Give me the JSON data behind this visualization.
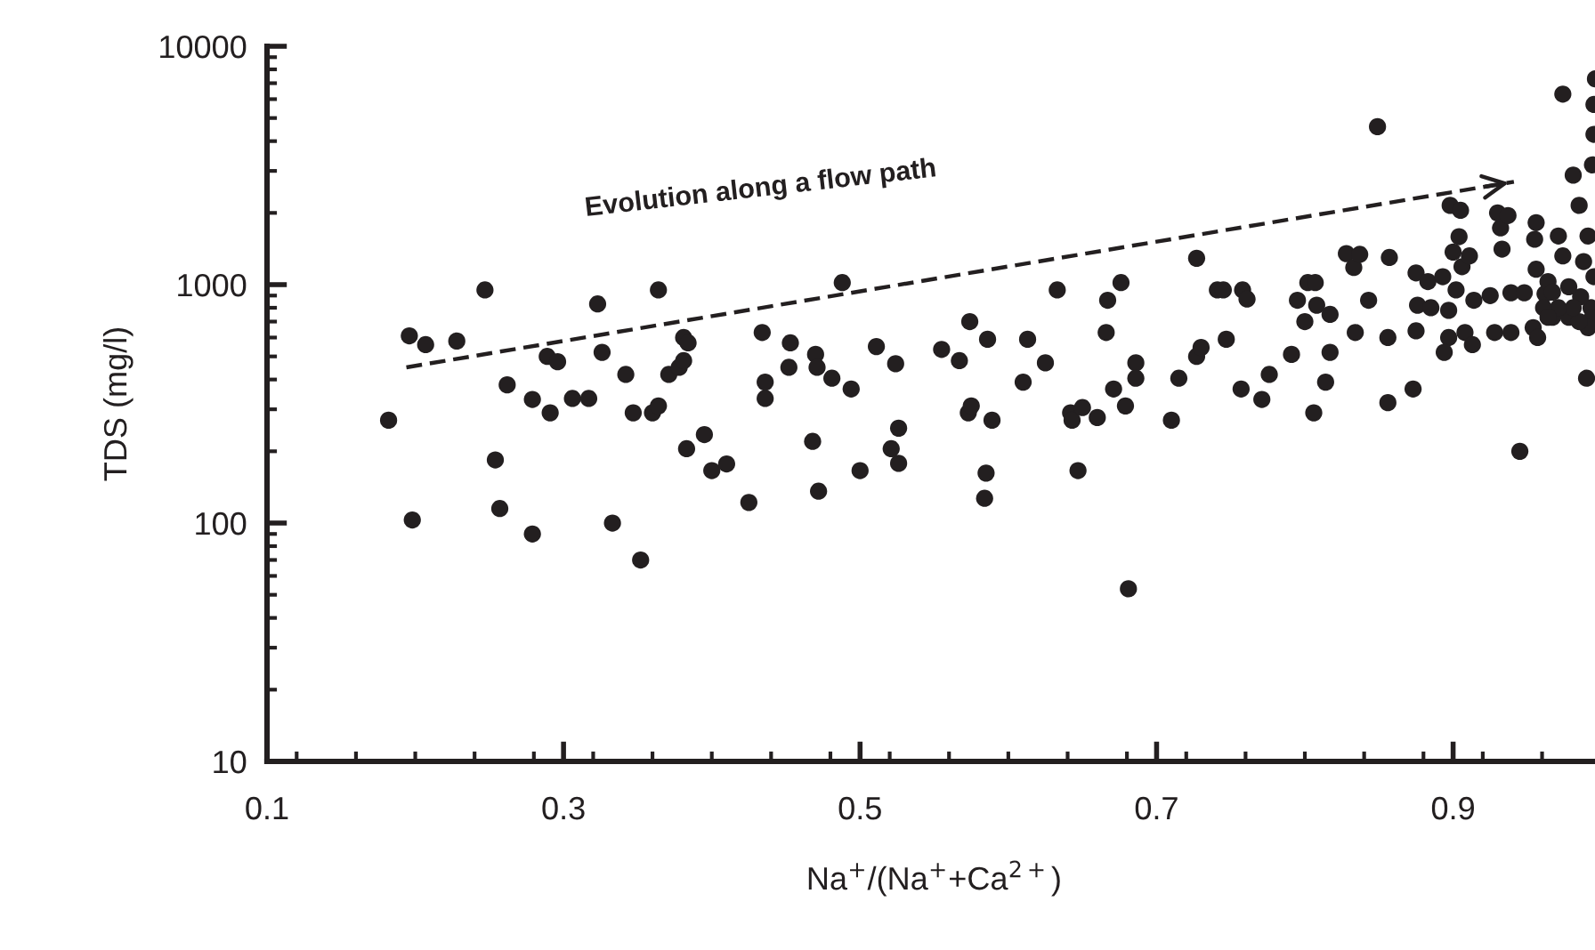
{
  "chart_data": {
    "type": "scatter",
    "xlabel": "Na$^{+}$/(Na$^{+}$+Ca$^{2+}$)",
    "ylabel": "TDS (mg/l)",
    "annotations": [
      "Evolution along a flow path"
    ],
    "log": "y",
    "xlim": [
      0.1,
      1.0
    ],
    "ylim": [
      10,
      10000
    ],
    "xticks": [
      0.1,
      0.3,
      0.5,
      0.7,
      0.9
    ],
    "yticks": [
      10,
      100,
      1000,
      10000
    ],
    "marker": "circle",
    "grid": false,
    "legend": false,
    "series": [
      {
        "color": "#231f20",
        "x": [
          0.182,
          0.196,
          0.207,
          0.198,
          0.228,
          0.247,
          0.254,
          0.257,
          0.262,
          0.279,
          0.279,
          0.289,
          0.291,
          0.296,
          0.306,
          0.317,
          0.323,
          0.326,
          0.333,
          0.342,
          0.347,
          0.352,
          0.36,
          0.364,
          0.364,
          0.371,
          0.378,
          0.381,
          0.381,
          0.384,
          0.383,
          0.395,
          0.4,
          0.41,
          0.425,
          0.434,
          0.436,
          0.436,
          0.453,
          0.452,
          0.468,
          0.47,
          0.472,
          0.471,
          0.481,
          0.488,
          0.494,
          0.5,
          0.511,
          0.524,
          0.521,
          0.526,
          0.526,
          0.555,
          0.567,
          0.574,
          0.573,
          0.575,
          0.586,
          0.585,
          0.584,
          0.589,
          0.61,
          0.613,
          0.625,
          0.633,
          0.642,
          0.643,
          0.647,
          0.65,
          0.66,
          0.666,
          0.667,
          0.671,
          0.676,
          0.679,
          0.681,
          0.686,
          0.686,
          0.71,
          0.715,
          0.727,
          0.727,
          0.73,
          0.741,
          0.745,
          0.747,
          0.757,
          0.758,
          0.761,
          0.771,
          0.776,
          0.791,
          0.795,
          0.8,
          0.802,
          0.806,
          0.807,
          0.808,
          0.814,
          0.817,
          0.817,
          0.828,
          0.833,
          0.837,
          0.843,
          0.834,
          0.849,
          0.857,
          0.856,
          0.856,
          0.873,
          0.875,
          0.875,
          0.876,
          0.883,
          0.885,
          0.893,
          0.898,
          0.9,
          0.897,
          0.897,
          0.894,
          0.902,
          0.905,
          0.904,
          0.906,
          0.911,
          0.908,
          0.913,
          0.914,
          0.925,
          0.928,
          0.93,
          0.932,
          0.933,
          0.937,
          0.939,
          0.939,
          0.945,
          0.948,
          0.954,
          0.956,
          0.955,
          0.956,
          0.957,
          0.962,
          0.964,
          0.967,
          0.974,
          0.971,
          0.974,
          0.978,
          0.981,
          0.985,
          0.988,
          0.99,
          0.991,
          0.993,
          0.994,
          0.995,
          0.995,
          0.996,
          0.995,
          0.994,
          0.991,
          0.986,
          0.985,
          0.981,
          0.978,
          0.971,
          0.967,
          0.961,
          0.964
        ],
        "values": [
          270,
          610,
          560,
          103,
          580,
          950,
          184,
          115,
          380,
          330,
          90,
          500,
          290,
          475,
          333,
          333,
          830,
          520,
          100,
          420,
          290,
          70,
          290,
          310,
          950,
          420,
          450,
          480,
          600,
          570,
          205,
          235,
          166,
          177,
          122,
          630,
          390,
          333,
          570,
          450,
          220,
          510,
          136,
          450,
          405,
          1020,
          365,
          166,
          550,
          466,
          205,
          250,
          178,
          535,
          480,
          700,
          290,
          310,
          590,
          162,
          127,
          270,
          390,
          590,
          470,
          950,
          290,
          270,
          166,
          305,
          277,
          630,
          860,
          365,
          1020,
          310,
          53,
          470,
          405,
          270,
          405,
          1290,
          500,
          545,
          950,
          950,
          590,
          365,
          950,
          870,
          330,
          420,
          510,
          860,
          700,
          1020,
          290,
          1020,
          820,
          390,
          520,
          750,
          1350,
          1180,
          1340,
          860,
          630,
          4600,
          1300,
          600,
          320,
          365,
          1120,
          640,
          820,
          1030,
          800,
          1080,
          2150,
          1370,
          600,
          780,
          520,
          950,
          2050,
          1590,
          1190,
          1320,
          630,
          560,
          860,
          900,
          630,
          2000,
          1730,
          1410,
          1950,
          925,
          630,
          200,
          925,
          660,
          1820,
          1550,
          1160,
          600,
          915,
          1030,
          730,
          6300,
          1600,
          1320,
          730,
          2880,
          2150,
          1250,
          405,
          1600,
          800,
          3180,
          4270,
          5700,
          7300,
          1080,
          730,
          660,
          890,
          700,
          800,
          980,
          800,
          930,
          800,
          730
        ]
      },
      {
        "type": "line",
        "color": "#231f20",
        "marker": "none",
        "line_style": "dashed",
        "x": [
          0.194,
          0.941
        ],
        "values": [
          450,
          2700
        ]
      }
    ]
  }
}
